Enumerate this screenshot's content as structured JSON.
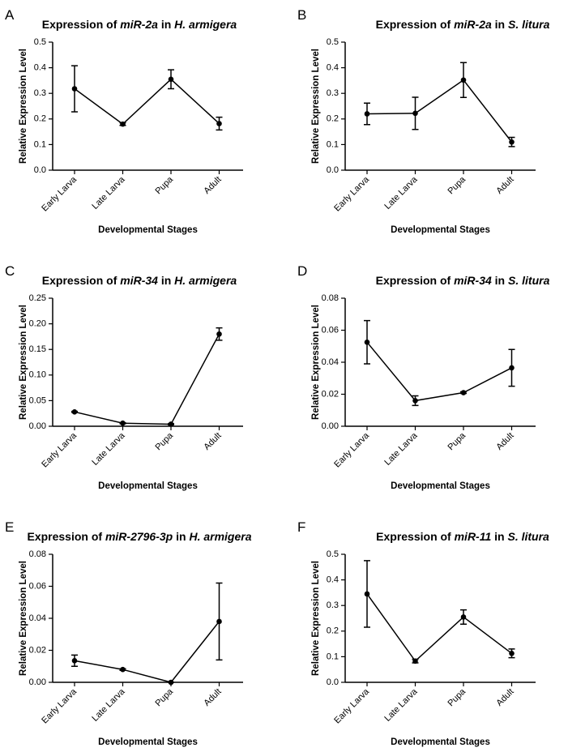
{
  "chart_data": [
    {
      "type": "line",
      "panel": "A",
      "title": [
        "Expression of ",
        "miR-2a",
        " in ",
        "H. armigera"
      ],
      "xlabel": "Developmental Stages",
      "ylabel": "Relative Expression Level",
      "categories": [
        "Early Larva",
        "Late Larva",
        "Pupa",
        "Adult"
      ],
      "values": [
        0.318,
        0.18,
        0.355,
        0.182
      ],
      "errors": [
        0.09,
        0.005,
        0.037,
        0.025
      ],
      "color": "#000000",
      "ylim": [
        0,
        0.5
      ],
      "yticks": [
        {
          "value": 0,
          "label": "0.0"
        },
        0.1,
        0.2,
        0.3,
        0.4,
        0.5
      ]
    },
    {
      "type": "line",
      "panel": "B",
      "title": [
        "Expression of ",
        "miR-2a",
        " in ",
        "S. litura"
      ],
      "xlabel": "Developmental Stages",
      "ylabel": "Relative Expression Level",
      "categories": [
        "Early Larva",
        "Late Larva",
        "Pupa",
        "Adult"
      ],
      "values": [
        0.22,
        0.222,
        0.352,
        0.11
      ],
      "errors": [
        0.042,
        0.063,
        0.068,
        0.018
      ],
      "color": "#000000",
      "ylim": [
        0,
        0.5
      ],
      "yticks": [
        {
          "value": 0,
          "label": "0.0"
        },
        0.1,
        0.2,
        0.3,
        0.4,
        0.5
      ]
    },
    {
      "type": "line",
      "panel": "C",
      "title": [
        "Expression of ",
        "miR-34",
        " in ",
        "H. armigera"
      ],
      "xlabel": "Developmental Stages",
      "ylabel": "Relative Expression Level",
      "categories": [
        "Early Larva",
        "Late Larva",
        "Pupa",
        "Adult"
      ],
      "values": [
        0.028,
        0.006,
        0.004,
        0.18
      ],
      "errors": [
        0.001,
        0.001,
        0.001,
        0.012
      ],
      "color": "#000000",
      "ylim": [
        0,
        0.25
      ],
      "yticks": [
        {
          "value": 0,
          "label": "0.00"
        },
        0.05,
        {
          "value": 0.1,
          "label": "0.10"
        },
        0.15,
        {
          "value": 0.2,
          "label": "0.20"
        },
        0.25
      ]
    },
    {
      "type": "line",
      "panel": "D",
      "title": [
        "Expression of ",
        "miR-34",
        " in ",
        "S. litura"
      ],
      "xlabel": "Developmental Stages",
      "ylabel": "Relative Expression Level",
      "categories": [
        "Early Larva",
        "Late Larva",
        "Pupa",
        "Adult"
      ],
      "values": [
        0.0525,
        0.016,
        0.021,
        0.0365
      ],
      "errors": [
        0.0135,
        0.003,
        0.0005,
        0.0115
      ],
      "color": "#000000",
      "ylim": [
        0,
        0.08
      ],
      "yticks": [
        {
          "value": 0,
          "label": "0.00"
        },
        0.02,
        0.04,
        0.06,
        0.08
      ]
    },
    {
      "type": "line",
      "panel": "E",
      "title": [
        "Expression of ",
        "miR-2796-3p",
        " in ",
        "H. armigera"
      ],
      "xlabel": "Developmental Stages",
      "ylabel": "Relative Expression Level",
      "categories": [
        "Early Larva",
        "Late Larva",
        "Pupa",
        "Adult"
      ],
      "values": [
        0.0135,
        0.008,
        0,
        0.038
      ],
      "errors": [
        0.0035,
        0.0005,
        0,
        0.024
      ],
      "color": "#000000",
      "ylim": [
        0,
        0.08
      ],
      "yticks": [
        {
          "value": 0,
          "label": "0.00"
        },
        0.02,
        0.04,
        0.06,
        0.08
      ]
    },
    {
      "type": "line",
      "panel": "F",
      "title": [
        "Expression of ",
        "miR-11",
        " in ",
        "S. litura"
      ],
      "xlabel": "Developmental Stages",
      "ylabel": "Relative Expression Level",
      "categories": [
        "Early Larva",
        "Late Larva",
        "Pupa",
        "Adult"
      ],
      "values": [
        0.345,
        0.083,
        0.255,
        0.113
      ],
      "errors": [
        0.13,
        0.007,
        0.028,
        0.017
      ],
      "color": "#000000",
      "ylim": [
        0,
        0.5
      ],
      "yticks": [
        {
          "value": 0,
          "label": "0.0"
        },
        0.1,
        0.2,
        0.3,
        0.4,
        0.5
      ]
    }
  ]
}
